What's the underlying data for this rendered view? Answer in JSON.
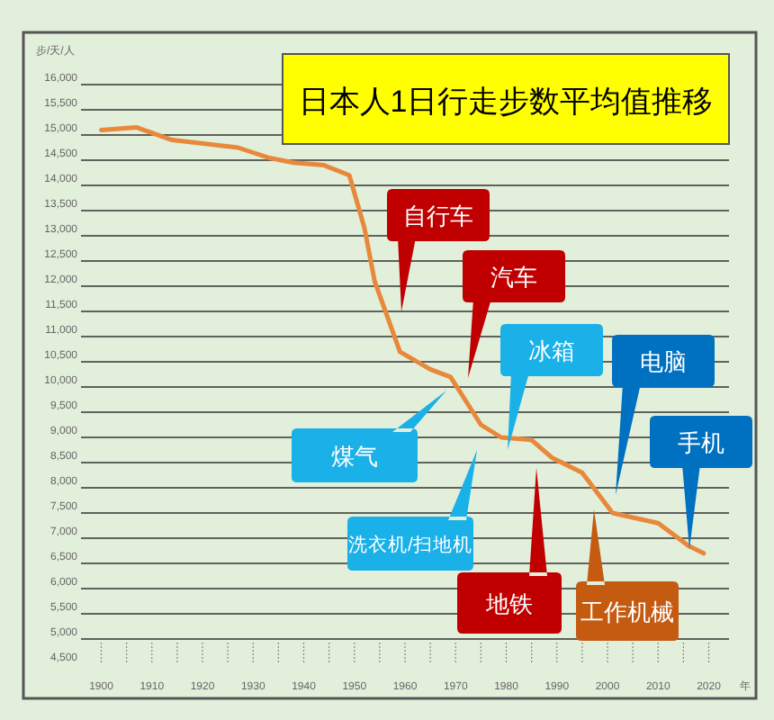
{
  "chart_data": {
    "type": "line",
    "title": "日本人1日行走步数平均值推移",
    "ylabel": "步/天/人",
    "xlabel": "年",
    "color": "#e8883a",
    "x": [
      1900,
      1907,
      1914,
      1927,
      1933,
      1938,
      1944,
      1949,
      1952,
      1954,
      1959,
      1965,
      1969,
      1975,
      1979,
      1985,
      1989,
      1995,
      2001,
      2010,
      2016,
      2019
    ],
    "values": [
      15100,
      15150,
      14900,
      14750,
      14550,
      14450,
      14400,
      14200,
      13150,
      12100,
      10700,
      10350,
      10200,
      9250,
      9000,
      8950,
      8600,
      8300,
      7500,
      7300,
      6850,
      6700
    ],
    "xlim": [
      1896,
      2024
    ],
    "ylim": [
      4500,
      16000
    ],
    "xticks": [
      1900,
      {
        "value": 1905,
        "label": null
      },
      1910,
      {
        "value": 1915,
        "label": null
      },
      1920,
      {
        "value": 1925,
        "label": null
      },
      1930,
      {
        "value": 1935,
        "label": null
      },
      1940,
      {
        "value": 1945,
        "label": null
      },
      1950,
      {
        "value": 1955,
        "label": null
      },
      1960,
      {
        "value": 1965,
        "label": null
      },
      1970,
      {
        "value": 1975,
        "label": null
      },
      1980,
      {
        "value": 1985,
        "label": null
      },
      1990,
      {
        "value": 1995,
        "label": null
      },
      2000,
      {
        "value": 2005,
        "label": null
      },
      2010,
      {
        "value": 2015,
        "label": null
      },
      2020
    ],
    "yticks": [
      {
        "value": 4500,
        "label": "4,500"
      },
      {
        "value": 5000,
        "label": "5,000"
      },
      {
        "value": 5500,
        "label": "5,500"
      },
      {
        "value": 6000,
        "label": "6,000"
      },
      {
        "value": 6500,
        "label": "6,500"
      },
      {
        "value": 7000,
        "label": "7,000"
      },
      {
        "value": 7500,
        "label": "7,500"
      },
      {
        "value": 8000,
        "label": "8,000"
      },
      {
        "value": 8500,
        "label": "8,500"
      },
      {
        "value": 9000,
        "label": "9,000"
      },
      {
        "value": 9500,
        "label": "9,500"
      },
      {
        "value": 10000,
        "label": "10,000"
      },
      {
        "value": 10500,
        "label": "10,500"
      },
      {
        "value": 11000,
        "label": "11,000"
      },
      {
        "value": 11500,
        "label": "11,500"
      },
      {
        "value": 12000,
        "label": "12,000"
      },
      {
        "value": 12500,
        "label": "12,500"
      },
      {
        "value": 13000,
        "label": "13,000"
      },
      {
        "value": 13500,
        "label": "13,500"
      },
      {
        "value": 14000,
        "label": "14,000"
      },
      {
        "value": 14500,
        "label": "14,500"
      },
      {
        "value": 15000,
        "label": "15,000"
      },
      {
        "value": 15500,
        "label": "15,500"
      },
      {
        "value": 16000,
        "label": "16,000"
      }
    ],
    "grid": "y",
    "annotations": [
      "自行车",
      "汽车",
      "冰箱",
      "电脑",
      "手机",
      "煤气",
      "洗衣机/扫地机",
      "地铁",
      "工作机械"
    ]
  }
}
